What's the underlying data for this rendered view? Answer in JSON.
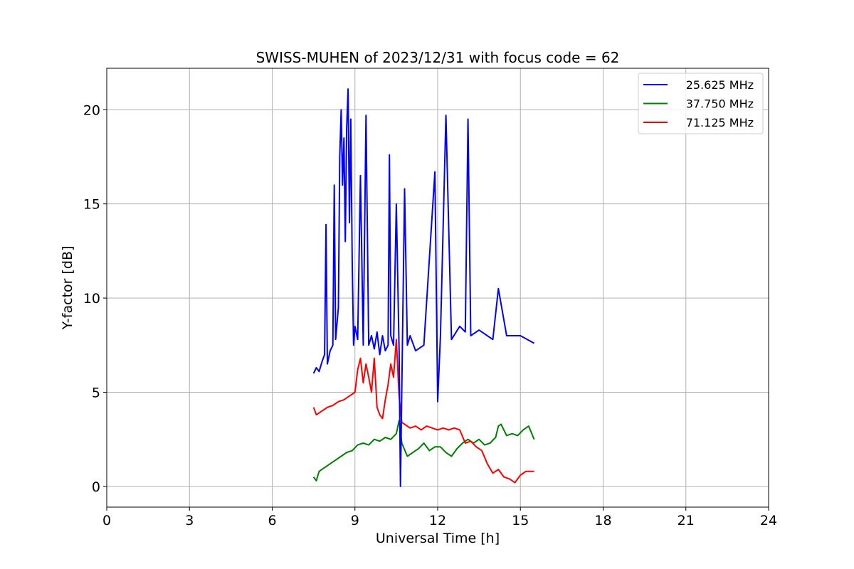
{
  "chart_data": {
    "type": "line",
    "title": "SWISS-MUHEN of 2023/12/31 with focus code = 62",
    "xlabel": "Universal Time [h]",
    "ylabel": "Y-factor [dB]",
    "xlim": [
      0,
      24
    ],
    "ylim": [
      -1.1,
      22.2
    ],
    "xticks": [
      0,
      3,
      6,
      9,
      12,
      15,
      18,
      21,
      24
    ],
    "yticks": [
      0,
      5,
      10,
      15,
      20
    ],
    "grid": true,
    "legend_position": "top-right",
    "series": [
      {
        "name": "25.625 MHz",
        "color": "#0000ff",
        "x": [
          7.5,
          7.6,
          7.7,
          7.8,
          7.9,
          7.95,
          8.0,
          8.1,
          8.2,
          8.25,
          8.3,
          8.4,
          8.45,
          8.5,
          8.55,
          8.6,
          8.65,
          8.7,
          8.75,
          8.8,
          8.85,
          8.9,
          8.95,
          9.0,
          9.1,
          9.2,
          9.3,
          9.4,
          9.5,
          9.6,
          9.7,
          9.8,
          9.9,
          10.0,
          10.1,
          10.2,
          10.25,
          10.3,
          10.4,
          10.5,
          10.6,
          10.65,
          10.8,
          10.9,
          11.0,
          11.2,
          11.5,
          11.9,
          12.0,
          12.1,
          12.3,
          12.5,
          12.8,
          13.0,
          13.1,
          13.2,
          13.5,
          14.0,
          14.2,
          14.5,
          15.0,
          15.5
        ],
        "y": [
          6.0,
          6.3,
          6.1,
          6.6,
          7.0,
          13.9,
          6.5,
          7.2,
          7.5,
          16.0,
          7.8,
          9.5,
          17.5,
          20.0,
          16.0,
          18.5,
          13.0,
          19.0,
          21.1,
          14.0,
          19.5,
          12.0,
          7.5,
          8.5,
          7.8,
          16.5,
          7.5,
          19.7,
          7.5,
          8.0,
          7.3,
          8.2,
          7.0,
          8.0,
          7.2,
          7.5,
          17.6,
          8.0,
          7.5,
          15.0,
          7.2,
          0.0,
          15.8,
          7.5,
          8.0,
          7.2,
          7.5,
          16.7,
          4.5,
          8.0,
          19.7,
          7.8,
          8.5,
          8.2,
          19.5,
          8.0,
          8.3,
          7.8,
          10.5,
          8.0,
          8.0,
          7.6
        ]
      },
      {
        "name": "37.750 MHz",
        "color": "#008000",
        "x": [
          7.5,
          7.6,
          7.7,
          7.9,
          8.1,
          8.3,
          8.5,
          8.7,
          8.9,
          9.1,
          9.3,
          9.5,
          9.7,
          9.9,
          10.1,
          10.3,
          10.5,
          10.6,
          10.7,
          10.9,
          11.1,
          11.3,
          11.5,
          11.7,
          11.9,
          12.1,
          12.3,
          12.5,
          12.7,
          12.9,
          13.1,
          13.3,
          13.5,
          13.7,
          13.9,
          14.1,
          14.2,
          14.3,
          14.5,
          14.7,
          14.9,
          15.1,
          15.3,
          15.5
        ],
        "y": [
          0.5,
          0.3,
          0.8,
          1.0,
          1.2,
          1.4,
          1.6,
          1.8,
          1.9,
          2.2,
          2.3,
          2.2,
          2.5,
          2.4,
          2.6,
          2.5,
          2.8,
          3.5,
          2.3,
          1.6,
          1.8,
          2.0,
          2.3,
          1.9,
          2.1,
          2.1,
          1.8,
          1.6,
          2.0,
          2.3,
          2.5,
          2.3,
          2.5,
          2.2,
          2.3,
          2.6,
          3.2,
          3.3,
          2.7,
          2.8,
          2.7,
          3.0,
          3.2,
          2.5
        ]
      },
      {
        "name": "71.125 MHz",
        "color": "#ff0000",
        "x": [
          7.5,
          7.6,
          7.8,
          8.0,
          8.2,
          8.4,
          8.6,
          8.8,
          9.0,
          9.1,
          9.2,
          9.3,
          9.4,
          9.5,
          9.6,
          9.7,
          9.8,
          9.9,
          10.0,
          10.1,
          10.2,
          10.3,
          10.4,
          10.5,
          10.6,
          10.7,
          10.8,
          11.0,
          11.2,
          11.4,
          11.6,
          11.8,
          12.0,
          12.2,
          12.4,
          12.6,
          12.8,
          13.0,
          13.2,
          13.4,
          13.6,
          13.8,
          14.0,
          14.2,
          14.4,
          14.6,
          14.8,
          15.0,
          15.2,
          15.5
        ],
        "y": [
          4.2,
          3.8,
          4.0,
          4.2,
          4.3,
          4.5,
          4.6,
          4.8,
          5.0,
          6.2,
          6.8,
          5.5,
          6.5,
          5.8,
          5.0,
          6.8,
          4.2,
          3.8,
          3.6,
          4.6,
          5.4,
          6.5,
          5.8,
          7.8,
          4.8,
          3.4,
          3.3,
          3.1,
          3.2,
          3.0,
          3.2,
          3.1,
          3.0,
          3.1,
          3.0,
          3.1,
          3.0,
          2.3,
          2.4,
          2.1,
          1.9,
          1.2,
          0.7,
          0.9,
          0.5,
          0.4,
          0.2,
          0.6,
          0.8,
          0.8
        ]
      }
    ]
  }
}
